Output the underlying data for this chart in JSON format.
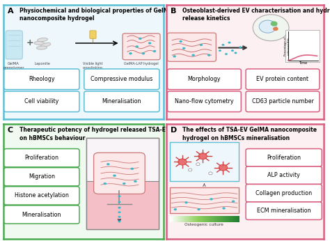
{
  "panel_A": {
    "label": "A",
    "title": "Physiochemical and biological properties of GelMA\nnanocomposite hydrogel",
    "border_color": "#5bbdd6",
    "box_color": "#5bbdd6",
    "bg_color": "#eef7fb",
    "boxes": [
      "Rheology",
      "Compressive modulus",
      "Cell viability",
      "Mineralisation"
    ],
    "sub_labels": [
      "GelMA\nprepolymer",
      "Laponite",
      "Visible light\ncrosslinking",
      "GelMA-LAP hydrogel"
    ]
  },
  "panel_B": {
    "label": "B",
    "title": "Osteoblast-derived EV characterisation and hydrogel\nrelease kinetics",
    "border_color": "#d96080",
    "box_color": "#d96080",
    "bg_color": "#fdf0f3",
    "boxes": [
      "Morphology",
      "EV protein content",
      "Nano-flow cytometry",
      "CD63 particle number"
    ]
  },
  "panel_C": {
    "label": "C",
    "title": "Therapeutic potency of hydrogel released TSA-EVs\non hBMSCs behaviour",
    "border_color": "#4aaa50",
    "box_color": "#4aaa50",
    "bg_color": "#f0faf0",
    "boxes": [
      "Proliferation",
      "Migration",
      "Histone acetylation",
      "Mineralisation"
    ]
  },
  "panel_D": {
    "label": "D",
    "title": "The effects of TSA-EV GelMA nanocomposite\nhydrogel on hBMSCs mineralisation",
    "border_color": "#d96080",
    "box_color": "#d96080",
    "bg_color": "#fdf0f3",
    "boxes": [
      "Proliferation",
      "ALP activity",
      "Collagen production",
      "ECM mineralisation"
    ],
    "osteogenic_label": "Osteogenic culture"
  },
  "bg_color": "#ffffff"
}
